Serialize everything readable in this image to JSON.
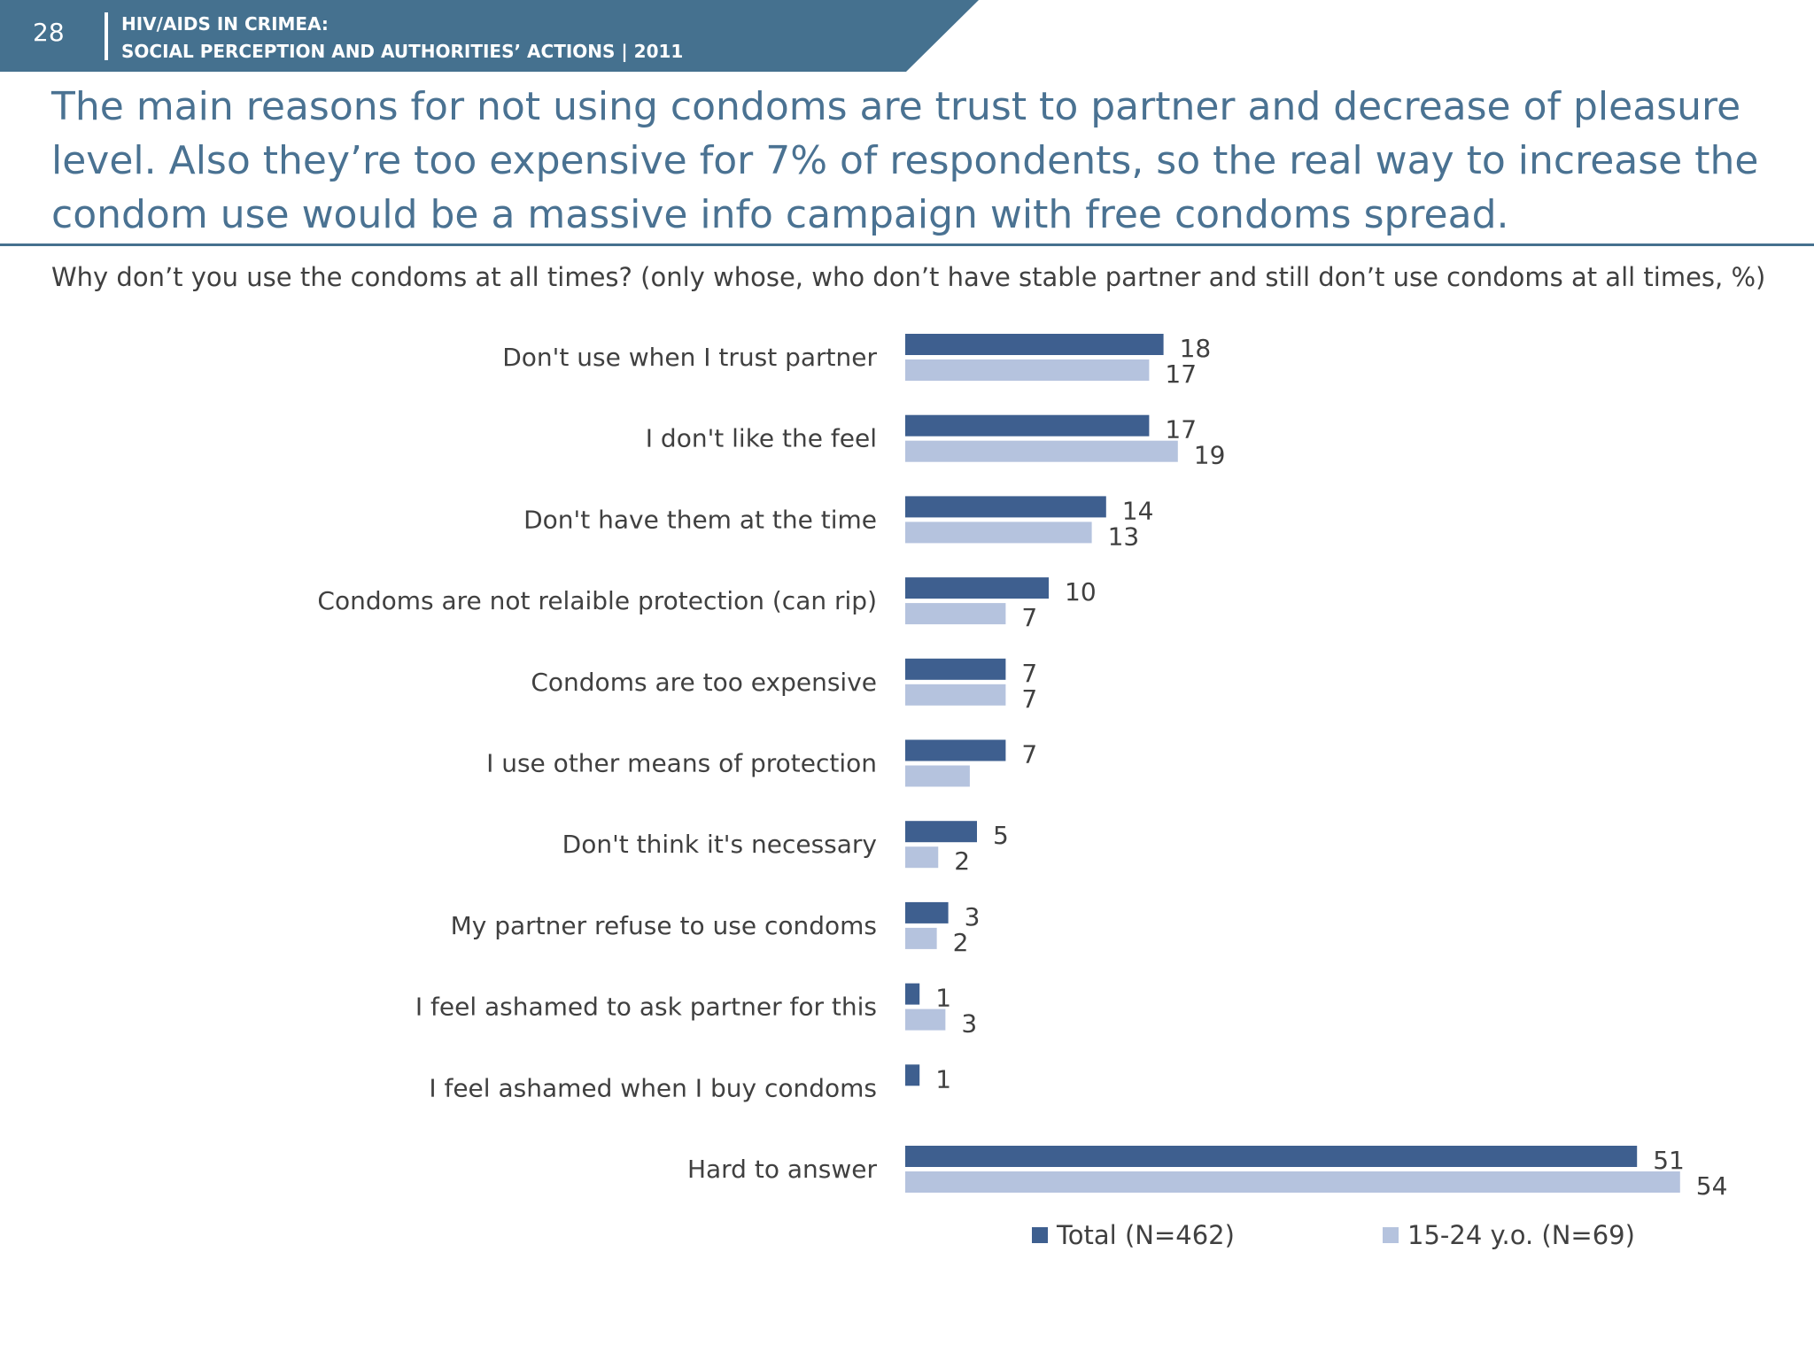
{
  "header": {
    "page_number": "28",
    "line1": "HIV/AIDS IN CRIMEA:",
    "line2": "SOCIAL PERCEPTION AND AUTHORITIES’ ACTIONS  |  2011"
  },
  "headline": "The main reasons for not using condoms are trust to partner and decrease of pleasure level. Also they’re too expensive for 7% of respondents, so the real way to increase the condom use would be a massive info campaign with free condoms spread.",
  "colors": {
    "header_bg": "#45718f",
    "headline": "#4a7292",
    "total": "#3e5f8f",
    "young": "#b5c3de"
  },
  "chart_data": {
    "type": "bar",
    "orientation": "horizontal",
    "title": "Why don’t you use the condoms at all times? (only whose, who don’t have stable partner and still don’t use condoms at all times, %)",
    "categories": [
      "Don't use when I trust partner",
      "I don't like the feel",
      "Don't have them at the time",
      "Condoms are not relaible protection (can rip)",
      "Condoms are too expensive",
      "I use other means of protection",
      "Don't think it's necessary",
      "My partner refuse to use condoms",
      "I feel ashamed to ask partner for this",
      "I feel ashamed when I buy condoms",
      "Hard to answer"
    ],
    "series": [
      {
        "name": "Total (N=462)",
        "color": "#3e5f8f",
        "values": [
          18,
          17,
          14,
          10,
          7,
          7,
          5,
          3,
          1,
          1,
          51
        ],
        "labels": [
          "18",
          "17",
          "14",
          "10",
          "7",
          "7",
          "5",
          "3",
          "1",
          "1",
          "51"
        ]
      },
      {
        "name": "15-24 y.o. (N=69)",
        "color": "#b5c3de",
        "values": [
          17,
          19,
          13,
          7,
          7,
          4.5,
          2.3,
          2.2,
          2.8,
          0,
          54
        ],
        "labels": [
          "17",
          "19",
          "13",
          "7",
          "7",
          "",
          "2",
          "2",
          "3",
          "",
          "54"
        ]
      }
    ],
    "xlim": [
      0,
      54
    ],
    "grid": false,
    "legend_position": "bottom"
  }
}
